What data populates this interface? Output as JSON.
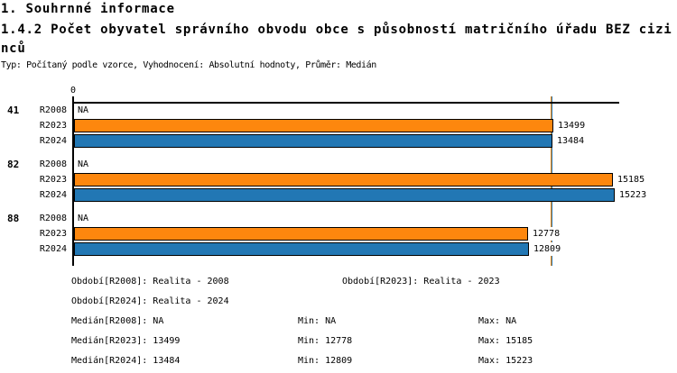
{
  "header": {
    "title": "1. Souhrnné informace",
    "subtitle": "1.4.2 Počet obyvatel správního obvodu obce s působností matričního úřadu BEZ cizinců",
    "meta": "Typ: Počítaný podle vzorce, Vyhodnocení: Absolutní hodnoty, Průměr: Medián"
  },
  "chart_data": {
    "type": "bar",
    "orientation": "horizontal",
    "categories": [
      "41",
      "82",
      "88"
    ],
    "series": [
      {
        "name": "R2008",
        "color": null,
        "values": [
          null,
          null,
          null
        ]
      },
      {
        "name": "R2023",
        "color": "#FD870E",
        "values": [
          13499,
          15185,
          12778
        ]
      },
      {
        "name": "R2024",
        "color": "#2277B4",
        "values": [
          13484,
          15223,
          12809
        ]
      }
    ],
    "na_label": "NA",
    "axis": {
      "zero_label": "0",
      "xlim": [
        0,
        15600
      ],
      "gridlines": false
    },
    "medians": [
      {
        "series": "R2023",
        "value": 13499,
        "color": "#FD870E"
      },
      {
        "series": "R2024",
        "value": 13484,
        "color": "#2277B4"
      }
    ],
    "value_labels": true,
    "legend_position": "bottom"
  },
  "legend": {
    "periods": [
      {
        "col1": "Období[R2008]: Realita - 2008",
        "col2": "Období[R2023]: Realita - 2023"
      },
      {
        "col1": "Období[R2024]: Realita - 2024"
      }
    ],
    "stats": [
      {
        "median": "Medián[R2008]: NA",
        "min": "Min: NA",
        "max": "Max: NA"
      },
      {
        "median": "Medián[R2023]: 13499",
        "min": "Min: 12778",
        "max": "Max: 15185"
      },
      {
        "median": "Medián[R2024]: 13484",
        "min": "Min: 12809",
        "max": "Max: 15223"
      }
    ]
  }
}
